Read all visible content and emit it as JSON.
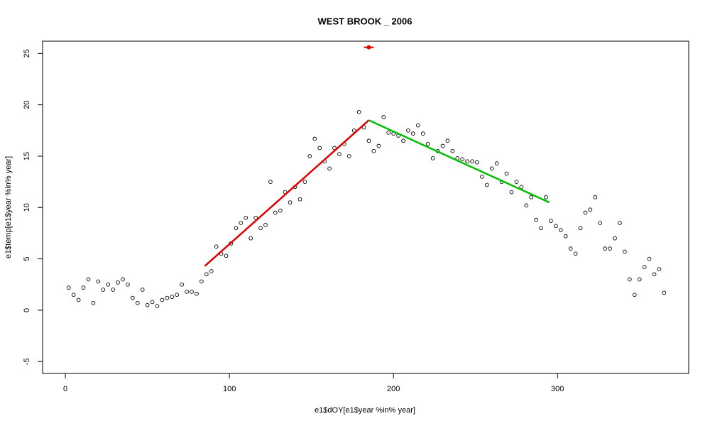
{
  "chart_data": {
    "type": "scatter",
    "title": "WEST BROOK _ 2006",
    "xlabel": "e1$dOY[e1$year %in% year]",
    "ylabel": "e1$temp[e1$year %in% year]",
    "xlim": [
      -13.9,
      380
    ],
    "ylim": [
      -6.16,
      26.2
    ],
    "xticks": [
      0,
      100,
      200,
      300
    ],
    "yticks": [
      -5,
      0,
      5,
      10,
      15,
      20,
      25
    ],
    "series": [
      {
        "mode": "points",
        "color": "#000000",
        "x": [
          2,
          5,
          8,
          11,
          14,
          17,
          20,
          23,
          26,
          29,
          32,
          35,
          38,
          41,
          44,
          47,
          50,
          53,
          56,
          59,
          62,
          65,
          68,
          71,
          74,
          77,
          80,
          83,
          86,
          89,
          92,
          95,
          98,
          101,
          104,
          107,
          110,
          113,
          116,
          119,
          122,
          125,
          128,
          131,
          134,
          137,
          140,
          143,
          146,
          149,
          152,
          155,
          158,
          161,
          164,
          167,
          170,
          173,
          176,
          179,
          182,
          185,
          188,
          191,
          194,
          197,
          200,
          203,
          206,
          209,
          212,
          215,
          218,
          221,
          224,
          227,
          230,
          233,
          236,
          239,
          242,
          245,
          248,
          251,
          254,
          257,
          260,
          263,
          266,
          269,
          272,
          275,
          278,
          281,
          284,
          287,
          290,
          293,
          296,
          299,
          302,
          305,
          308,
          311,
          314,
          317,
          320,
          323,
          326,
          329,
          332,
          335,
          338,
          341,
          344,
          347,
          350,
          353,
          356,
          359,
          362,
          365
        ],
        "values": [
          2.2,
          1.5,
          1.0,
          2.2,
          3.0,
          0.7,
          2.8,
          2.0,
          2.5,
          2.0,
          2.7,
          3.0,
          2.5,
          1.2,
          0.7,
          2.0,
          0.5,
          0.8,
          0.4,
          1.0,
          1.2,
          1.3,
          1.5,
          2.5,
          1.8,
          1.8,
          1.6,
          2.8,
          3.5,
          3.8,
          6.2,
          5.5,
          5.3,
          6.5,
          8.0,
          8.5,
          9.0,
          7.0,
          9.0,
          8.0,
          8.3,
          12.5,
          9.5,
          9.7,
          11.5,
          10.5,
          12.0,
          10.8,
          12.5,
          15.0,
          16.7,
          15.8,
          14.5,
          13.8,
          15.8,
          15.2,
          16.2,
          15.0,
          17.5,
          19.3,
          17.8,
          16.5,
          15.5,
          16.0,
          18.8,
          17.3,
          17.2,
          17.0,
          16.5,
          17.5,
          17.2,
          18.0,
          17.2,
          16.2,
          14.8,
          15.5,
          16.0,
          16.5,
          15.5,
          14.8,
          14.7,
          14.5,
          14.5,
          14.4,
          13.0,
          12.2,
          13.8,
          14.3,
          12.5,
          13.3,
          11.5,
          12.5,
          12.0,
          10.2,
          11.0,
          8.8,
          8.0,
          11.0,
          8.7,
          8.2,
          7.8,
          7.2,
          6.0,
          5.5,
          8.0,
          9.5,
          9.8,
          11.0,
          8.5,
          6.0,
          6.0,
          7.0,
          8.5,
          5.7,
          3.0,
          1.5,
          3.0,
          4.2,
          5.0,
          3.5,
          4.0,
          1.7
        ]
      },
      {
        "mode": "line",
        "color": "#e00000",
        "x": [
          85,
          185
        ],
        "values": [
          4.3,
          18.5
        ]
      },
      {
        "mode": "line",
        "color": "#00c000",
        "x": [
          185,
          295
        ],
        "values": [
          18.5,
          10.5
        ]
      },
      {
        "mode": "errorpoint",
        "color": "#e00000",
        "x": [
          185
        ],
        "xerr": [
          3
        ],
        "values": [
          25.6
        ]
      }
    ]
  }
}
